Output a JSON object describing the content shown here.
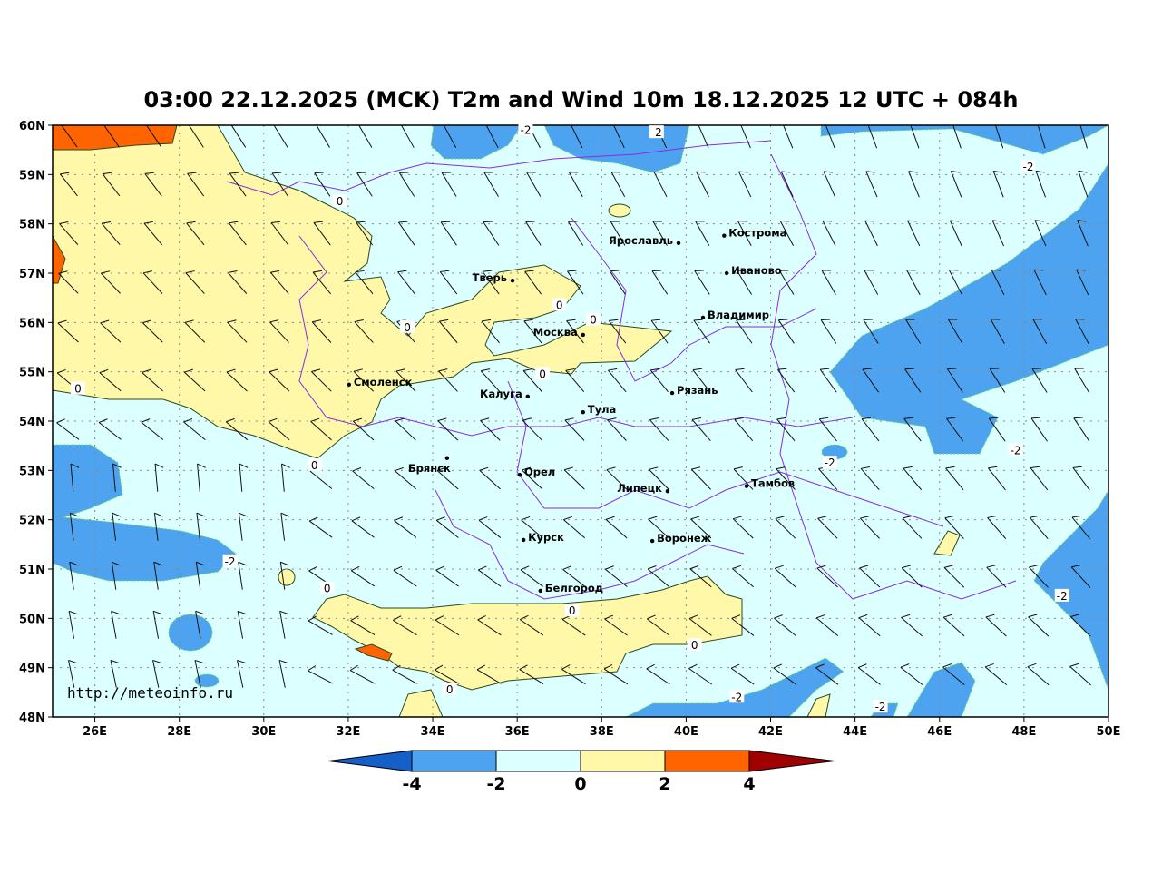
{
  "title": "03:00 22.12.2025 (MCK) T2m and Wind 10m 18.12.2025 12 UTC + 084h",
  "map": {
    "lon_range": [
      25,
      50
    ],
    "lat_range": [
      48,
      60
    ],
    "lon_ticks": [
      "26E",
      "28E",
      "30E",
      "32E",
      "34E",
      "36E",
      "38E",
      "40E",
      "42E",
      "44E",
      "46E",
      "48E",
      "50E"
    ],
    "lat_ticks": [
      "48N",
      "49N",
      "50N",
      "51N",
      "52N",
      "53N",
      "54N",
      "55N",
      "56N",
      "57N",
      "58N",
      "59N",
      "60N"
    ],
    "gridlines": true,
    "colors": {
      "below_-4": "#1560c8",
      "-4_-2": "#4ea3f0",
      "-2_0": "#dcffff",
      "0_2": "#fff8a8",
      "2_4": "#ff6400",
      "above_4": "#a00000",
      "borders": "#8a2be2"
    }
  },
  "cities": [
    {
      "name": "Кострома",
      "lon": 40.9,
      "lat": 57.76,
      "side": "right"
    },
    {
      "name": "Ярославль",
      "lon": 39.82,
      "lat": 57.61,
      "side": "left"
    },
    {
      "name": "Иваново",
      "lon": 40.96,
      "lat": 57.0,
      "side": "right"
    },
    {
      "name": "Тверь",
      "lon": 35.89,
      "lat": 56.85,
      "side": "left"
    },
    {
      "name": "Владимир",
      "lon": 40.4,
      "lat": 56.1,
      "side": "right"
    },
    {
      "name": "Москва",
      "lon": 37.56,
      "lat": 55.75,
      "side": "left"
    },
    {
      "name": "Смоленск",
      "lon": 32.02,
      "lat": 54.74,
      "side": "right"
    },
    {
      "name": "Калуга",
      "lon": 36.25,
      "lat": 54.5,
      "side": "left"
    },
    {
      "name": "Рязань",
      "lon": 39.67,
      "lat": 54.57,
      "side": "right"
    },
    {
      "name": "Тула",
      "lon": 37.56,
      "lat": 54.18,
      "side": "right"
    },
    {
      "name": "Брянск",
      "lon": 34.34,
      "lat": 53.25,
      "side": "below-left"
    },
    {
      "name": "Орел",
      "lon": 36.06,
      "lat": 52.91,
      "side": "right"
    },
    {
      "name": "Липецк",
      "lon": 39.56,
      "lat": 52.58,
      "side": "left"
    },
    {
      "name": "Тамбов",
      "lon": 41.43,
      "lat": 52.68,
      "side": "right"
    },
    {
      "name": "Курск",
      "lon": 36.15,
      "lat": 51.59,
      "side": "right"
    },
    {
      "name": "Воронеж",
      "lon": 39.2,
      "lat": 51.57,
      "side": "right"
    },
    {
      "name": "Белгород",
      "lon": 36.55,
      "lat": 50.56,
      "side": "right"
    }
  ],
  "contour_labels": [
    {
      "text": "-2",
      "lon": 36.2,
      "lat": 59.9
    },
    {
      "text": "-2",
      "lon": 39.3,
      "lat": 59.85
    },
    {
      "text": "-2",
      "lon": 48.1,
      "lat": 59.15
    },
    {
      "text": "0",
      "lon": 31.8,
      "lat": 58.45
    },
    {
      "text": "0",
      "lon": 37.0,
      "lat": 56.35
    },
    {
      "text": "0",
      "lon": 37.8,
      "lat": 56.05
    },
    {
      "text": "0",
      "lon": 33.4,
      "lat": 55.9
    },
    {
      "text": "0",
      "lon": 25.6,
      "lat": 54.65
    },
    {
      "text": "0",
      "lon": 36.6,
      "lat": 54.95
    },
    {
      "text": "0",
      "lon": 31.2,
      "lat": 53.1
    },
    {
      "text": "-2",
      "lon": 43.4,
      "lat": 53.15
    },
    {
      "text": "-2",
      "lon": 47.8,
      "lat": 53.4
    },
    {
      "text": "-2",
      "lon": 29.2,
      "lat": 51.15
    },
    {
      "text": "0",
      "lon": 31.5,
      "lat": 50.6
    },
    {
      "text": "0",
      "lon": 37.3,
      "lat": 50.15
    },
    {
      "text": "0",
      "lon": 40.2,
      "lat": 49.45
    },
    {
      "text": "-2",
      "lon": 48.9,
      "lat": 50.45
    },
    {
      "text": "0",
      "lon": 34.4,
      "lat": 48.55
    },
    {
      "text": "-2",
      "lon": 41.2,
      "lat": 48.4
    },
    {
      "text": "-2",
      "lon": 44.6,
      "lat": 48.2
    }
  ],
  "watermark": "http://meteoinfo.ru",
  "colorbar": {
    "ticks": [
      "-4",
      "-2",
      "0",
      "2",
      "4"
    ],
    "colors": [
      "#1560c8",
      "#4ea3f0",
      "#dcffff",
      "#fff8a8",
      "#ff6400",
      "#a00000"
    ]
  }
}
